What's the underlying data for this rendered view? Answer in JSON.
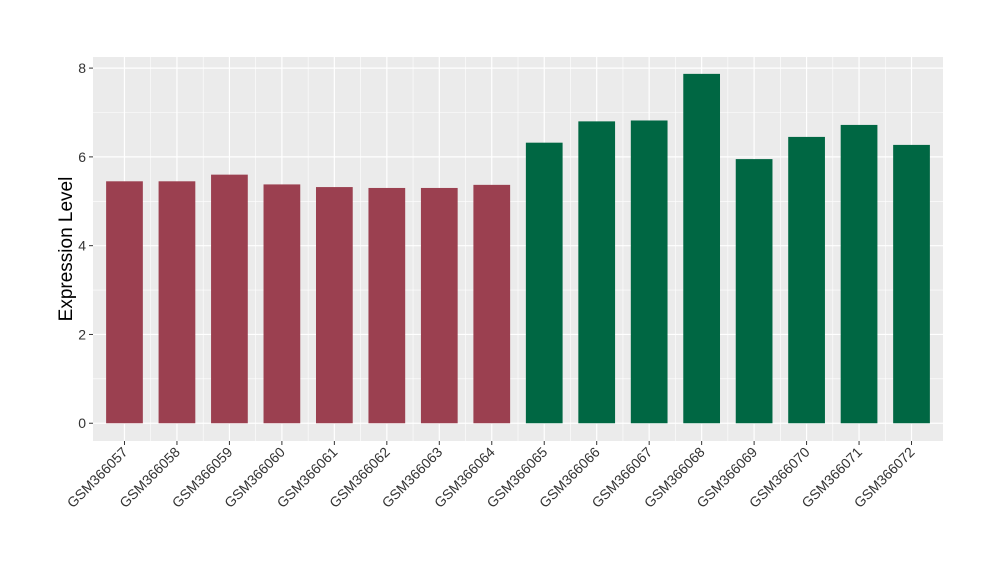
{
  "chart_data": {
    "type": "bar",
    "title": "",
    "xlabel": "",
    "ylabel": "Expression Level",
    "categories": [
      "GSM366057",
      "GSM366058",
      "GSM366059",
      "GSM366060",
      "GSM366061",
      "GSM366062",
      "GSM366063",
      "GSM366064",
      "GSM366065",
      "GSM366066",
      "GSM366067",
      "GSM366068",
      "GSM366069",
      "GSM366070",
      "GSM366071",
      "GSM366072"
    ],
    "values": [
      5.45,
      5.45,
      5.6,
      5.38,
      5.32,
      5.3,
      5.3,
      5.37,
      6.32,
      6.8,
      6.82,
      7.87,
      5.95,
      6.45,
      6.72,
      6.27
    ],
    "bar_colors": [
      "#9b4050",
      "#9b4050",
      "#9b4050",
      "#9b4050",
      "#9b4050",
      "#9b4050",
      "#9b4050",
      "#9b4050",
      "#006743",
      "#006743",
      "#006743",
      "#006743",
      "#006743",
      "#006743",
      "#006743",
      "#006743"
    ],
    "ylim": [
      -0.4,
      8.25
    ],
    "yticks": [
      0,
      2,
      4,
      6,
      8
    ],
    "grid": true,
    "legend": "none",
    "panel_color": "#ebebeb",
    "grid_color": "#ffffff"
  }
}
